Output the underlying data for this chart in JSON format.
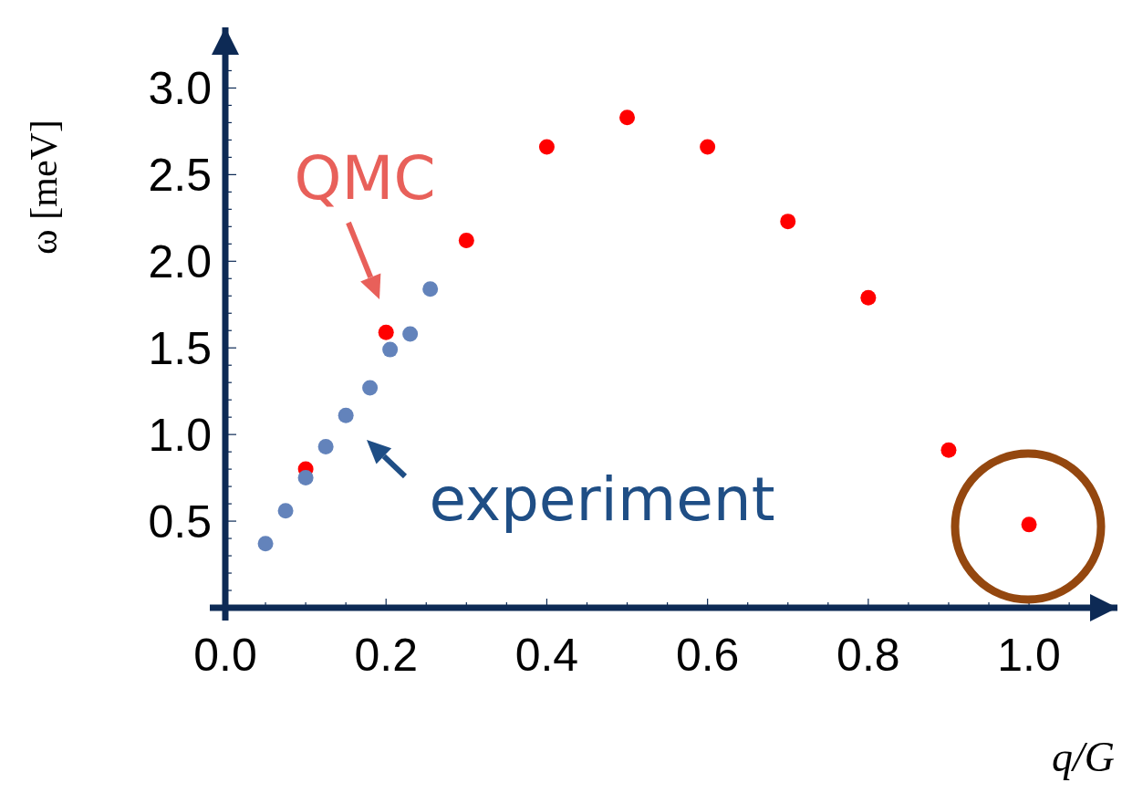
{
  "chart_data": {
    "type": "scatter",
    "xlabel": "q/G",
    "ylabel": "ω [meV]",
    "xlim": [
      0,
      1.11
    ],
    "ylim": [
      0,
      3.35
    ],
    "xticks": [
      {
        "value": 0,
        "label": "0.0"
      },
      {
        "value": 0.05,
        "label": null
      },
      {
        "value": 0.1,
        "label": null
      },
      {
        "value": 0.15,
        "label": null
      },
      {
        "value": 0.2,
        "label": "0.2"
      },
      {
        "value": 0.25,
        "label": null
      },
      {
        "value": 0.3,
        "label": null
      },
      {
        "value": 0.35,
        "label": null
      },
      {
        "value": 0.4,
        "label": "0.4"
      },
      {
        "value": 0.45,
        "label": null
      },
      {
        "value": 0.5,
        "label": null
      },
      {
        "value": 0.55,
        "label": null
      },
      {
        "value": 0.6,
        "label": "0.6"
      },
      {
        "value": 0.65,
        "label": null
      },
      {
        "value": 0.7,
        "label": null
      },
      {
        "value": 0.75,
        "label": null
      },
      {
        "value": 0.8,
        "label": "0.8"
      },
      {
        "value": 0.85,
        "label": null
      },
      {
        "value": 0.9,
        "label": null
      },
      {
        "value": 0.95,
        "label": null
      },
      {
        "value": 1.0,
        "label": "1.0"
      },
      {
        "value": 1.05,
        "label": null
      }
    ],
    "yticks": [
      {
        "value": 0.1,
        "label": null
      },
      {
        "value": 0.2,
        "label": null
      },
      {
        "value": 0.3,
        "label": null
      },
      {
        "value": 0.4,
        "label": null
      },
      {
        "value": 0.5,
        "label": "0.5"
      },
      {
        "value": 0.6,
        "label": null
      },
      {
        "value": 0.7,
        "label": null
      },
      {
        "value": 0.8,
        "label": null
      },
      {
        "value": 0.9,
        "label": null
      },
      {
        "value": 1.0,
        "label": "1.0"
      },
      {
        "value": 1.1,
        "label": null
      },
      {
        "value": 1.2,
        "label": null
      },
      {
        "value": 1.3,
        "label": null
      },
      {
        "value": 1.4,
        "label": null
      },
      {
        "value": 1.5,
        "label": "1.5"
      },
      {
        "value": 1.6,
        "label": null
      },
      {
        "value": 1.7,
        "label": null
      },
      {
        "value": 1.8,
        "label": null
      },
      {
        "value": 1.9,
        "label": null
      },
      {
        "value": 2.0,
        "label": "2.0"
      },
      {
        "value": 2.1,
        "label": null
      },
      {
        "value": 2.2,
        "label": null
      },
      {
        "value": 2.3,
        "label": null
      },
      {
        "value": 2.4,
        "label": null
      },
      {
        "value": 2.5,
        "label": "2.5"
      },
      {
        "value": 2.6,
        "label": null
      },
      {
        "value": 2.7,
        "label": null
      },
      {
        "value": 2.8,
        "label": null
      },
      {
        "value": 2.9,
        "label": null
      },
      {
        "value": 3.0,
        "label": "3.0"
      },
      {
        "value": 3.1,
        "label": null
      },
      {
        "value": 3.2,
        "label": null
      }
    ],
    "marker": "circle",
    "grid": false,
    "series": [
      {
        "name": "QMC",
        "color": "#ff0000",
        "x": [
          0.1,
          0.2,
          0.3,
          0.4,
          0.5,
          0.6,
          0.7,
          0.8,
          0.9,
          1.0
        ],
        "values": [
          0.8,
          1.59,
          2.12,
          2.66,
          2.83,
          2.66,
          2.23,
          1.79,
          0.91,
          0.48
        ]
      },
      {
        "name": "experiment",
        "color": "#6383bb",
        "x": [
          0.05,
          0.075,
          0.1,
          0.125,
          0.15,
          0.18,
          0.205,
          0.23,
          0.255
        ],
        "values": [
          0.37,
          0.56,
          0.75,
          0.93,
          1.11,
          1.27,
          1.49,
          1.58,
          1.84
        ]
      }
    ]
  }
}
